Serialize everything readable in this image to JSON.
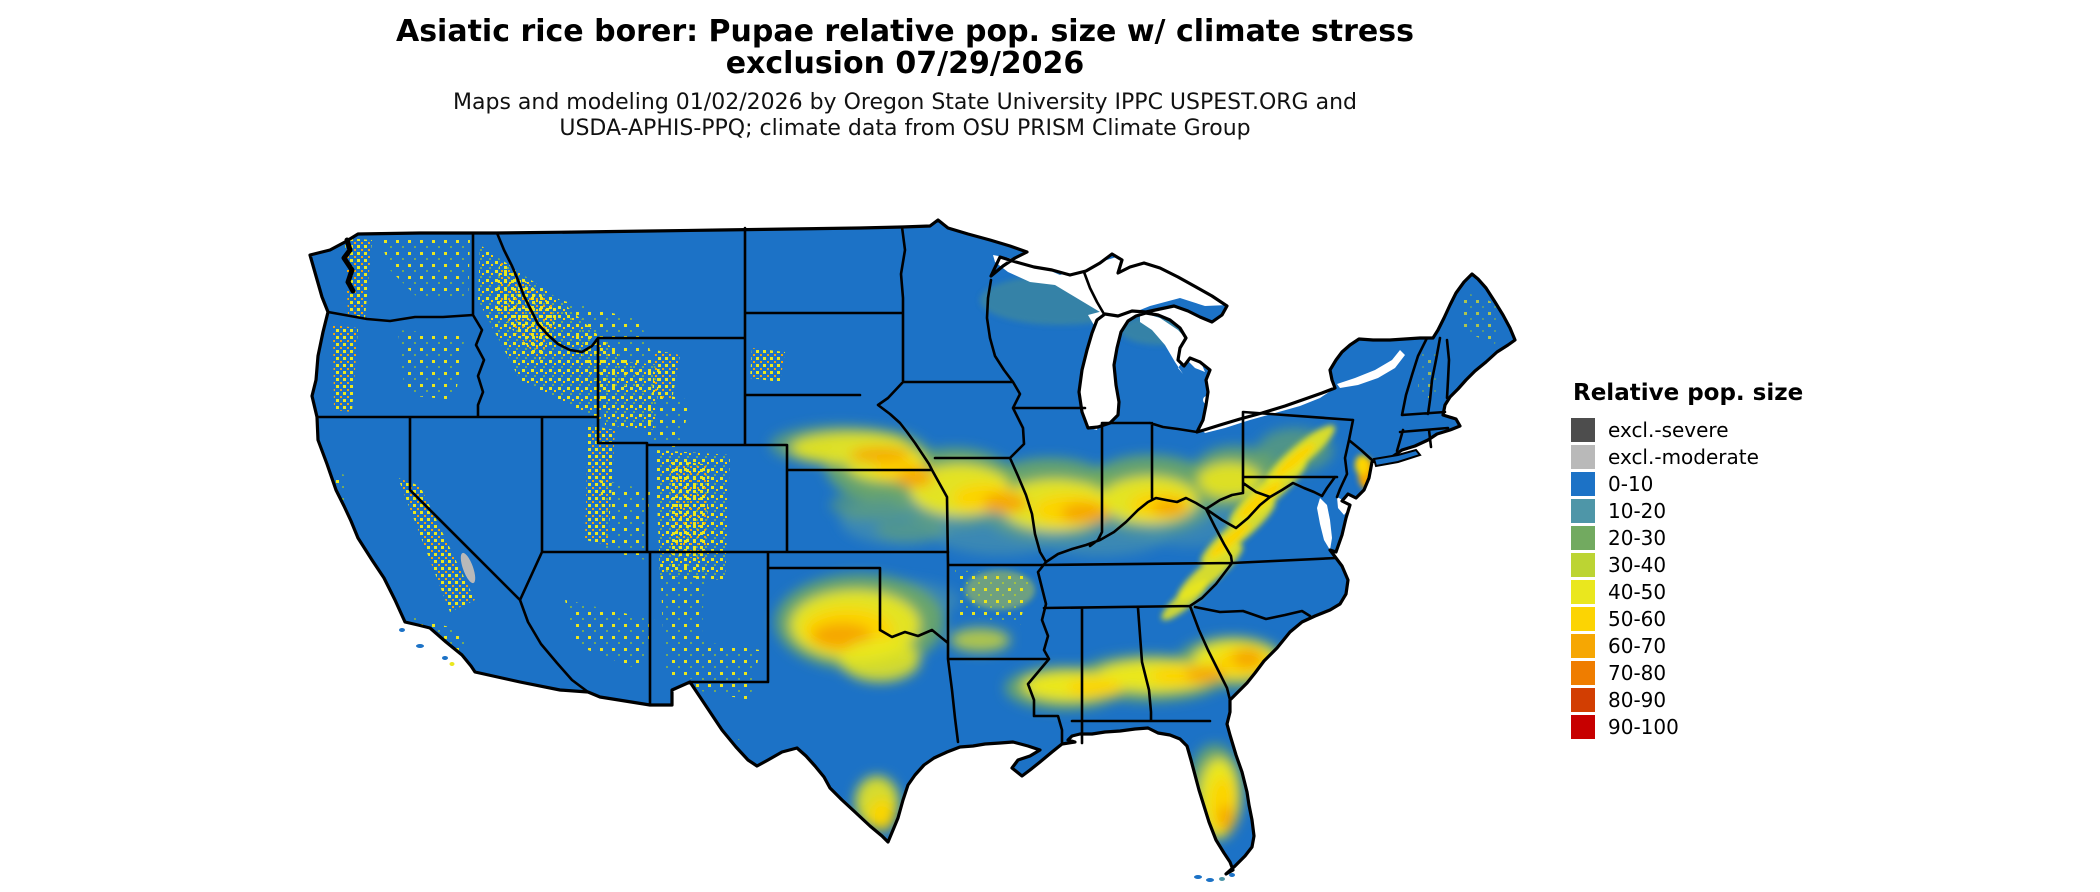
{
  "title": {
    "line1": "Asiatic rice borer: Pupae relative pop. size w/ climate stress",
    "line2": "exclusion 07/29/2026"
  },
  "subtitle": {
    "line1": "Maps and modeling 01/02/2026 by Oregon State University IPPC USPEST.ORG and",
    "line2": "USDA-APHIS-PPQ; climate data from OSU PRISM Climate Group"
  },
  "legend": {
    "title": "Relative pop. size",
    "items": [
      {
        "label": "excl.-severe",
        "color": "#4D4D4D"
      },
      {
        "label": "excl.-moderate",
        "color": "#B9B9B9"
      },
      {
        "label": "0-10",
        "color": "#1C72C6"
      },
      {
        "label": "10-20",
        "color": "#4E96A8"
      },
      {
        "label": "20-30",
        "color": "#72AA60"
      },
      {
        "label": "30-40",
        "color": "#BCD433"
      },
      {
        "label": "40-50",
        "color": "#EAE71E"
      },
      {
        "label": "50-60",
        "color": "#FCD403"
      },
      {
        "label": "60-70",
        "color": "#F6A703"
      },
      {
        "label": "70-80",
        "color": "#EF7D00"
      },
      {
        "label": "80-90",
        "color": "#D23E02"
      },
      {
        "label": "90-100",
        "color": "#C70000"
      }
    ]
  },
  "map": {
    "region": "Contiguous United States",
    "date_shown": "07/29/2026",
    "base_color": "#1C72C6",
    "border_color": "#000000",
    "water_color": "#FFFFFF"
  }
}
